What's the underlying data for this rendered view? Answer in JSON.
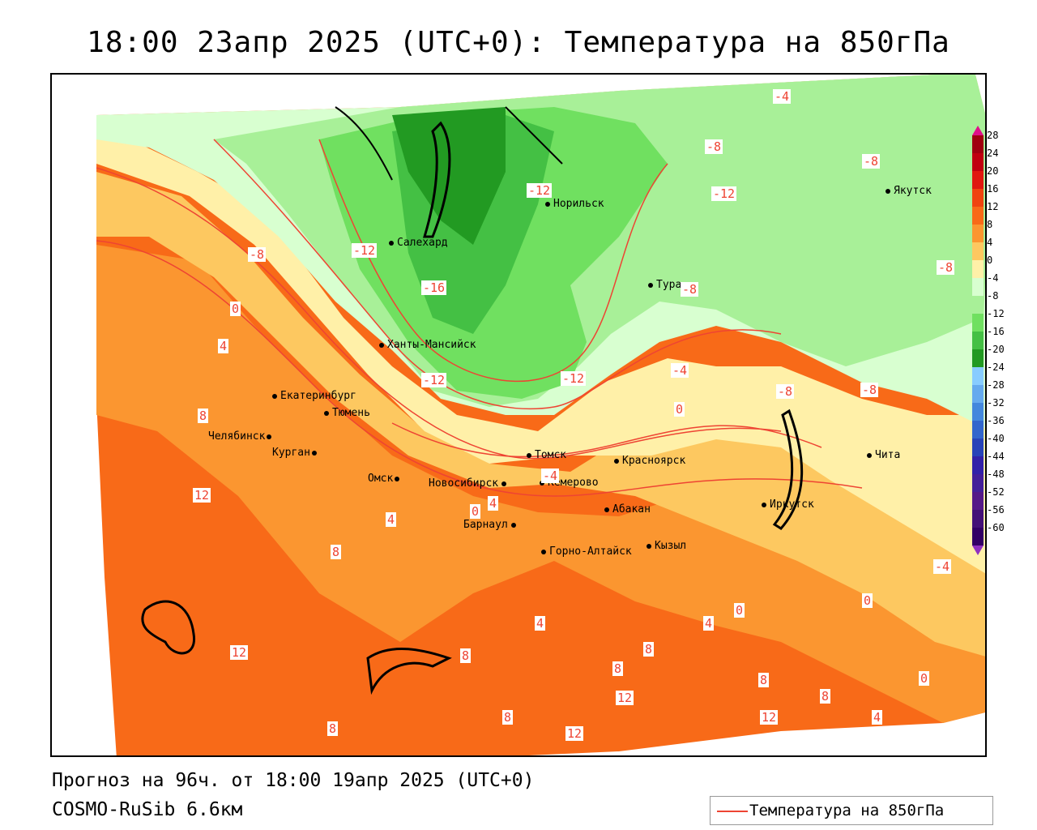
{
  "header": {
    "title": "18:00 23апр 2025 (UTC+0): Температура на 850гПа"
  },
  "footer": {
    "forecast": "Прогноз на 96ч. от 18:00 19апр 2025 (UTC+0)",
    "model": "COSMO-RuSib 6.6км"
  },
  "legend": {
    "label": "Температура на 850гПа",
    "color": "#e84030"
  },
  "color_scale": {
    "labels": [
      "28",
      "24",
      "20",
      "16",
      "12",
      "8",
      "4",
      "0",
      "-4",
      "-8",
      "-12",
      "-16",
      "-20",
      "-24",
      "-28",
      "-32",
      "-36",
      "-40",
      "-44",
      "-48",
      "-52",
      "-56",
      "-60"
    ],
    "colors": [
      "#a00010",
      "#c00010",
      "#e01810",
      "#f04410",
      "#f86a18",
      "#fb9630",
      "#fdc860",
      "#fff0a8",
      "#d8ffd0",
      "#a8f098",
      "#70e060",
      "#44c044",
      "#229a22",
      "#88ccff",
      "#66aaee",
      "#4488dd",
      "#3366cc",
      "#2844b8",
      "#3322a8",
      "#442099",
      "#551a88",
      "#441177",
      "#330066"
    ]
  },
  "cities": [
    {
      "name": "Якутск"
    },
    {
      "name": "Норильск"
    },
    {
      "name": "Салехард"
    },
    {
      "name": "Тура"
    },
    {
      "name": "Ханты-Мансийск"
    },
    {
      "name": "Екатеринбург"
    },
    {
      "name": "Тюмень"
    },
    {
      "name": "Челябинск"
    },
    {
      "name": "Курган"
    },
    {
      "name": "Омск"
    },
    {
      "name": "Новосибирск"
    },
    {
      "name": "Томск"
    },
    {
      "name": "Кемерово"
    },
    {
      "name": "Красноярск"
    },
    {
      "name": "Барнаул"
    },
    {
      "name": "Абакан"
    },
    {
      "name": "Горно-Алтайск"
    },
    {
      "name": "Кызыл"
    },
    {
      "name": "Иркутск"
    },
    {
      "name": "Чита"
    }
  ],
  "isotherm_labels": [
    "-4",
    "-8",
    "-8",
    "-12",
    "-12",
    "-12",
    "-8",
    "-8",
    "-16",
    "-12",
    "-12",
    "-8",
    "0",
    "4",
    "8",
    "12",
    "4",
    "-8",
    "-8",
    "-4",
    "0",
    "0",
    "4",
    "-4",
    "-4",
    "0",
    "8",
    "12",
    "8",
    "4",
    "8",
    "8",
    "12",
    "8",
    "12",
    "8",
    "12",
    "0",
    "4",
    "4",
    "0",
    "8",
    "8"
  ]
}
